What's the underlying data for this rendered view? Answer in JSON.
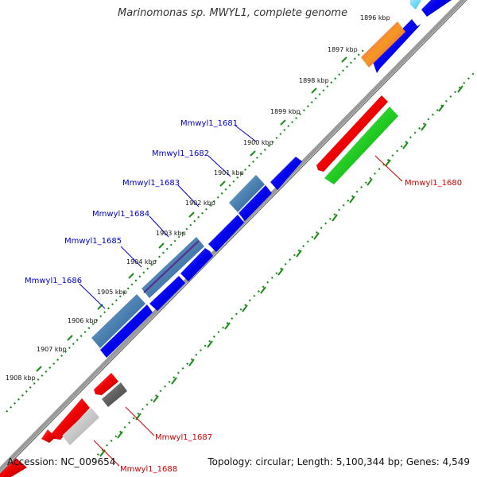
{
  "title": "Marinomonas sp. MWYL1, complete genome",
  "accession": "Accession: NC_009654",
  "summary": "Topology: circular; Length: 5,100,344 bp; Genes: 4,549",
  "ticks": [
    "1896 kbp",
    "1897 kbp",
    "1898 kbp",
    "1899 kbp",
    "1900 kbp",
    "1901 kbp",
    "1902 kbp",
    "1903 kbp",
    "1904 kbp",
    "1905 kbp",
    "1906 kbp",
    "1907 kbp",
    "1908 kbp"
  ],
  "gene_labels": [
    {
      "text": "Mmwyl1_1680",
      "strand": "reverse"
    },
    {
      "text": "Mmwyl1_1681",
      "strand": "forward"
    },
    {
      "text": "Mmwyl1_1682",
      "strand": "forward"
    },
    {
      "text": "Mmwyl1_1683",
      "strand": "forward"
    },
    {
      "text": "Mmwyl1_1684",
      "strand": "forward"
    },
    {
      "text": "Mmwyl1_1685",
      "strand": "forward"
    },
    {
      "text": "Mmwyl1_1686",
      "strand": "forward"
    },
    {
      "text": "Mmwyl1_1687",
      "strand": "reverse"
    },
    {
      "text": "Mmwyl1_1688",
      "strand": "reverse"
    }
  ],
  "colors": {
    "forward_cds": "#0000ee",
    "reverse_cds": "#ee0000",
    "feature_steel": "#4a7fb0",
    "feature_green": "#22cc22",
    "feature_gray": "#606060",
    "feature_lightgray": "#c8c8c8",
    "feature_magenta": "#e0208a",
    "feature_orange": "#f59a20",
    "feature_cyan": "#33c4ee",
    "backbone": "#9a9a9a",
    "dots": "#1b8a1b",
    "forward_label": "#0000cc",
    "reverse_label": "#cc0000"
  }
}
